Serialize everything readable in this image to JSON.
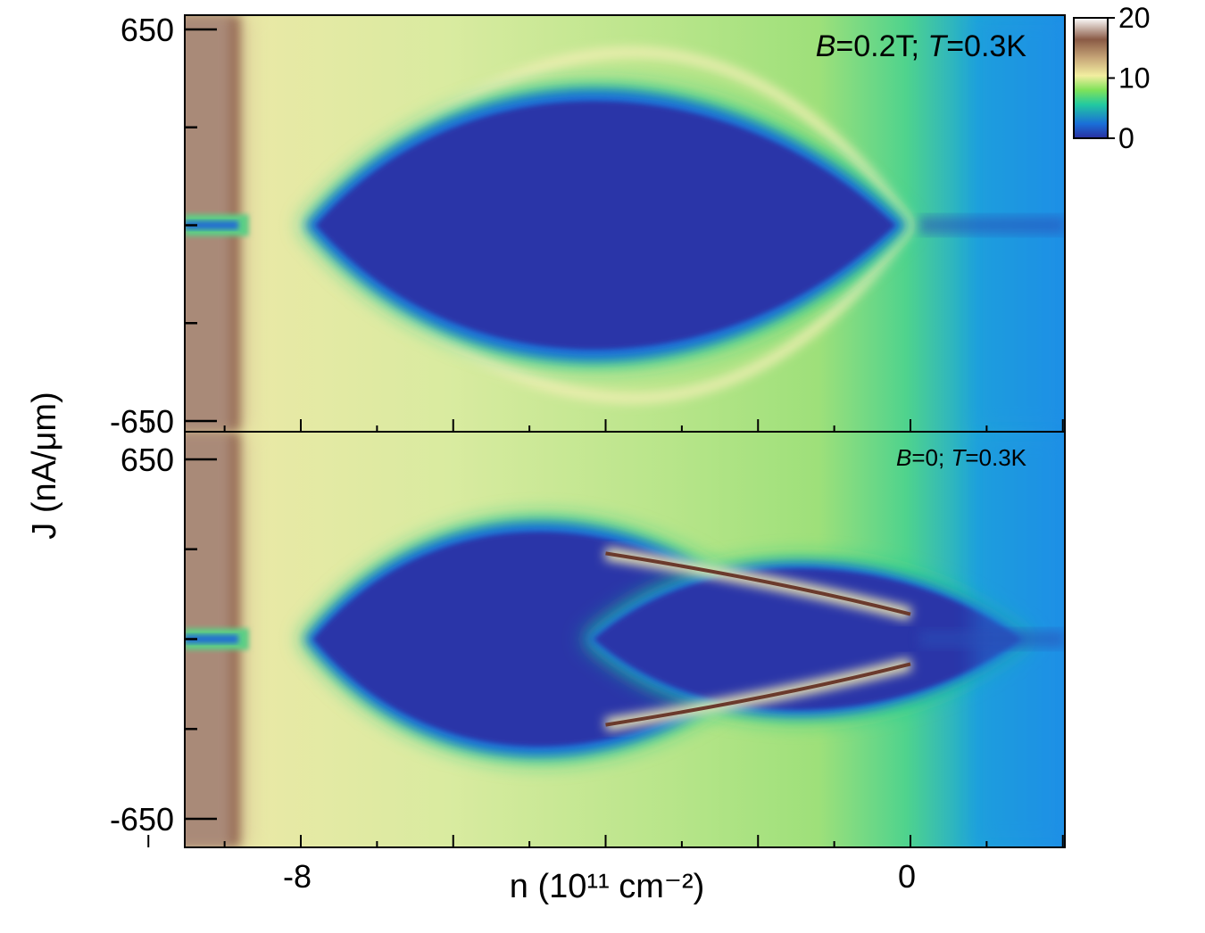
{
  "chart_data": {
    "type": "heatmap",
    "xlabel": "n (10¹¹ cm⁻²)",
    "ylabel": "J (nA/μm)",
    "xlim": [
      -11,
      4
    ],
    "ylim": [
      -700,
      760
    ],
    "x_major_ticks": [
      -8,
      0
    ],
    "x_minor_step": 2,
    "y_major_ticks": [
      650,
      -650
    ],
    "colorbar": {
      "range": [
        0,
        20
      ],
      "ticks": [
        20,
        10,
        0
      ],
      "colors": [
        "#2a2fa0",
        "#1a6fd8",
        "#22c9a0",
        "#7fe25a",
        "#f2eea0",
        "#c9a97a",
        "#8a5a45",
        "#ffffff"
      ]
    },
    "panels": [
      {
        "name": "top",
        "annotation": "B=0.2T; T=0.3K",
        "lobes": [
          {
            "n_start": -8.0,
            "n_end": 0.0,
            "J_half_width": 500
          }
        ],
        "features": [
          {
            "type": "band",
            "n_min": -10.0,
            "n_max": -8.8,
            "value": 16
          },
          {
            "type": "arc",
            "n_start": -8.0,
            "n_end": 0.0,
            "J_peak": 560,
            "value": 12
          }
        ]
      },
      {
        "name": "bottom",
        "annotation": "B=0; T=0.3K",
        "lobes": [
          {
            "n_start": -8.0,
            "n_end": -1.5,
            "J_half_width": 470
          },
          {
            "n_start": -4.3,
            "n_end": 1.6,
            "J_half_width": 310
          }
        ],
        "features": [
          {
            "type": "band",
            "n_min": -10.0,
            "n_max": -8.8,
            "value": 16
          },
          {
            "type": "peak-line",
            "n_start": -4.0,
            "n_end": 0.0,
            "J_start": 310,
            "J_end": 90,
            "value": 20
          }
        ]
      }
    ]
  }
}
